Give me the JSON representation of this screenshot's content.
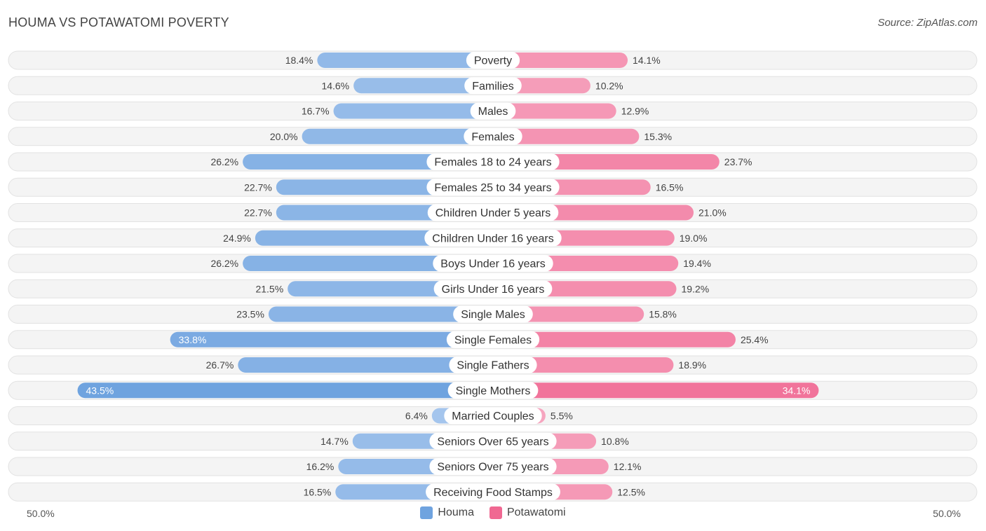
{
  "title": "HOUMA VS POTAWATOMI POVERTY",
  "source": "Source: ZipAtlas.com",
  "axis": {
    "left_label": "50.0%",
    "right_label": "50.0%"
  },
  "legend": [
    {
      "name": "Houma",
      "color": "#6fa3df"
    },
    {
      "name": "Potawatomi",
      "color": "#f06892"
    }
  ],
  "chart_data": {
    "type": "bar",
    "orientation": "diverging-horizontal",
    "title": "HOUMA VS POTAWATOMI POVERTY",
    "xlim": [
      -50,
      50
    ],
    "categories": [
      "Poverty",
      "Families",
      "Males",
      "Females",
      "Females 18 to 24 years",
      "Females 25 to 34 years",
      "Children Under 5 years",
      "Children Under 16 years",
      "Boys Under 16 years",
      "Girls Under 16 years",
      "Single Males",
      "Single Females",
      "Single Fathers",
      "Single Mothers",
      "Married Couples",
      "Seniors Over 65 years",
      "Seniors Over 75 years",
      "Receiving Food Stamps"
    ],
    "series": [
      {
        "name": "Houma",
        "side": "left",
        "values": [
          18.4,
          14.6,
          16.7,
          20.0,
          26.2,
          22.7,
          22.7,
          24.9,
          26.2,
          21.5,
          23.5,
          33.8,
          26.7,
          43.5,
          6.4,
          14.7,
          16.2,
          16.5
        ],
        "labels": [
          "18.4%",
          "14.6%",
          "16.7%",
          "20.0%",
          "26.2%",
          "22.7%",
          "22.7%",
          "24.9%",
          "26.2%",
          "21.5%",
          "23.5%",
          "33.8%",
          "26.7%",
          "43.5%",
          "6.4%",
          "14.7%",
          "16.2%",
          "16.5%"
        ]
      },
      {
        "name": "Potawatomi",
        "side": "right",
        "values": [
          14.1,
          10.2,
          12.9,
          15.3,
          23.7,
          16.5,
          21.0,
          19.0,
          19.4,
          19.2,
          15.8,
          25.4,
          18.9,
          34.1,
          5.5,
          10.8,
          12.1,
          12.5
        ],
        "labels": [
          "14.1%",
          "10.2%",
          "12.9%",
          "15.3%",
          "23.7%",
          "16.5%",
          "21.0%",
          "19.0%",
          "19.4%",
          "19.2%",
          "15.8%",
          "25.4%",
          "18.9%",
          "34.1%",
          "5.5%",
          "10.8%",
          "12.1%",
          "12.5%"
        ]
      }
    ]
  }
}
